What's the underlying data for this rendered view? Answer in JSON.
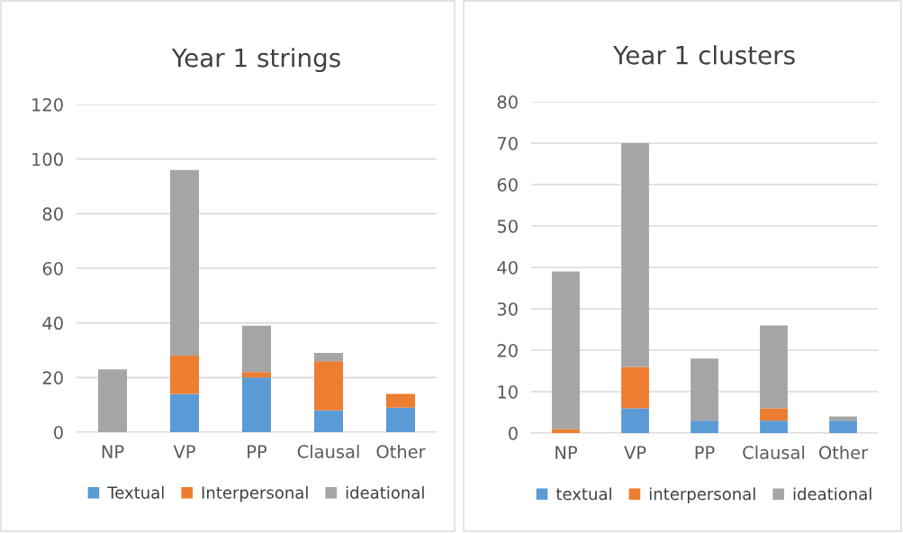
{
  "chart_data": [
    {
      "type": "bar",
      "title": "Year 1 strings",
      "categories": [
        "NP",
        "VP",
        "PP",
        "Clausal",
        "Other"
      ],
      "stacked": true,
      "ylim": [
        0,
        120
      ],
      "yticks": [
        0,
        20,
        40,
        60,
        80,
        100,
        120
      ],
      "grid": "y",
      "legend": "bottom",
      "series": [
        {
          "name": "Textual",
          "color": "#5b9bd5",
          "values": [
            0,
            14,
            20,
            8,
            9
          ]
        },
        {
          "name": "Interpersonal",
          "color": "#ed7d31",
          "values": [
            0,
            14,
            2,
            18,
            5
          ]
        },
        {
          "name": "ideational",
          "color": "#a5a5a5",
          "values": [
            23,
            68,
            17,
            3,
            0
          ]
        }
      ]
    },
    {
      "type": "bar",
      "title": "Year 1 clusters",
      "categories": [
        "NP",
        "VP",
        "PP",
        "Clausal",
        "Other"
      ],
      "stacked": true,
      "ylim": [
        0,
        80
      ],
      "yticks": [
        0,
        10,
        20,
        30,
        40,
        50,
        60,
        70,
        80
      ],
      "grid": "y",
      "legend": "bottom",
      "series": [
        {
          "name": "textual",
          "color": "#5b9bd5",
          "values": [
            0,
            6,
            3,
            3,
            3
          ]
        },
        {
          "name": "interpersonal",
          "color": "#ed7d31",
          "values": [
            1,
            10,
            0,
            3,
            0
          ]
        },
        {
          "name": "ideational",
          "color": "#a5a5a5",
          "values": [
            38,
            54,
            15,
            20,
            1
          ]
        }
      ]
    }
  ]
}
